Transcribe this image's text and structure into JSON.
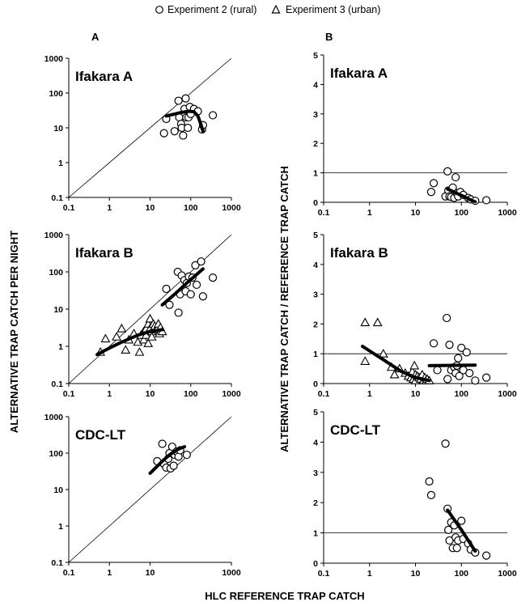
{
  "legend": {
    "position": "top",
    "items": [
      {
        "label": "Experiment 2 (rural)",
        "marker": "circle"
      },
      {
        "label": "Experiment 3 (urban)",
        "marker": "triangle"
      }
    ]
  },
  "column_labels": [
    "A",
    "B"
  ],
  "ylabel_left": "ALTERNATIVE TRAP CATCH PER NIGHT",
  "ylabel_right": "ALTERNATIVE TRAP CATCH / REFERENCE TRAP CATCH",
  "xlabel": "HLC REFERENCE TRAP CATCH",
  "colors": {
    "marks": "#000000",
    "background": "#ffffff"
  },
  "chart_data": [
    {
      "id": "A1",
      "type": "scatter",
      "title": "Ifakara A",
      "xscale": "log",
      "yscale": "log",
      "xlim": [
        0.1,
        1000
      ],
      "ylim": [
        0.1,
        1000
      ],
      "xticks": [
        "0.1",
        "1",
        "10",
        "100",
        "1000"
      ],
      "yticks": [
        "0.1",
        "1",
        "10",
        "100",
        "1000"
      ],
      "reference_line": "y=x",
      "series": [
        {
          "name": "Experiment 2 (rural)",
          "marker": "circle",
          "points": [
            [
              22,
              7
            ],
            [
              25,
              18
            ],
            [
              40,
              8
            ],
            [
              50,
              60
            ],
            [
              52,
              20
            ],
            [
              58,
              13
            ],
            [
              60,
              10
            ],
            [
              65,
              6
            ],
            [
              70,
              35
            ],
            [
              75,
              70
            ],
            [
              78,
              20
            ],
            [
              85,
              10
            ],
            [
              88,
              20
            ],
            [
              95,
              40
            ],
            [
              100,
              25
            ],
            [
              120,
              35
            ],
            [
              150,
              30
            ],
            [
              190,
              9
            ],
            [
              200,
              12
            ],
            [
              350,
              23
            ]
          ]
        }
      ],
      "fit_lines": [
        [
          [
            25,
            22
          ],
          [
            40,
            25
          ],
          [
            60,
            28
          ],
          [
            90,
            30
          ],
          [
            120,
            29
          ],
          [
            150,
            22
          ],
          [
            180,
            12
          ],
          [
            200,
            8
          ]
        ]
      ]
    },
    {
      "id": "B1",
      "type": "scatter",
      "title": "Ifakara A",
      "xscale": "log",
      "yscale": "linear",
      "xlim": [
        0.1,
        1000
      ],
      "ylim": [
        0,
        5
      ],
      "xticks": [
        "0.1",
        "1",
        "10",
        "100",
        "1000"
      ],
      "yticks": [
        "0",
        "1",
        "2",
        "3",
        "4",
        "5"
      ],
      "reference_line": "y=1",
      "series": [
        {
          "name": "Experiment 2 (rural)",
          "marker": "circle",
          "points": [
            [
              22,
              0.35
            ],
            [
              25,
              0.65
            ],
            [
              45,
              0.2
            ],
            [
              50,
              1.05
            ],
            [
              52,
              0.4
            ],
            [
              55,
              0.2
            ],
            [
              60,
              0.18
            ],
            [
              65,
              0.5
            ],
            [
              70,
              0.15
            ],
            [
              75,
              0.85
            ],
            [
              80,
              0.3
            ],
            [
              85,
              0.2
            ],
            [
              95,
              0.35
            ],
            [
              110,
              0.25
            ],
            [
              140,
              0.15
            ],
            [
              160,
              0.1
            ],
            [
              200,
              0.05
            ],
            [
              350,
              0.07
            ]
          ]
        }
      ],
      "fit_lines": [
        [
          [
            50,
            0.45
          ],
          [
            80,
            0.3
          ],
          [
            120,
            0.18
          ],
          [
            160,
            0.08
          ],
          [
            200,
            0.02
          ]
        ]
      ]
    },
    {
      "id": "A2",
      "type": "scatter",
      "title": "Ifakara B",
      "xscale": "log",
      "yscale": "log",
      "xlim": [
        0.1,
        1000
      ],
      "ylim": [
        0.1,
        1000
      ],
      "xticks": [
        "0.1",
        "1",
        "10",
        "100",
        "1000"
      ],
      "yticks": [
        "0.1",
        "1",
        "10",
        "100",
        "1000"
      ],
      "reference_line": "y=x",
      "series": [
        {
          "name": "Experiment 2 (rural)",
          "marker": "circle",
          "points": [
            [
              25,
              35
            ],
            [
              30,
              13
            ],
            [
              48,
              100
            ],
            [
              50,
              8
            ],
            [
              55,
              25
            ],
            [
              60,
              80
            ],
            [
              70,
              60
            ],
            [
              75,
              30
            ],
            [
              80,
              50
            ],
            [
              90,
              75
            ],
            [
              100,
              25
            ],
            [
              110,
              70
            ],
            [
              130,
              150
            ],
            [
              140,
              45
            ],
            [
              180,
              190
            ],
            [
              200,
              22
            ],
            [
              350,
              70
            ]
          ]
        },
        {
          "name": "Experiment 3 (urban)",
          "marker": "triangle",
          "points": [
            [
              0.6,
              0.7
            ],
            [
              0.8,
              1.6
            ],
            [
              1.5,
              1.8
            ],
            [
              2,
              3
            ],
            [
              2.5,
              0.8
            ],
            [
              3,
              1.5
            ],
            [
              4,
              2.2
            ],
            [
              5,
              1.3
            ],
            [
              5.5,
              0.7
            ],
            [
              6,
              2
            ],
            [
              7,
              2.5
            ],
            [
              7,
              1.5
            ],
            [
              8,
              3
            ],
            [
              8,
              2
            ],
            [
              9,
              4
            ],
            [
              9,
              1.2
            ],
            [
              10,
              5.5
            ],
            [
              10,
              3
            ],
            [
              11,
              2.5
            ],
            [
              11,
              1.8
            ],
            [
              12,
              4
            ],
            [
              13,
              3.5
            ],
            [
              14,
              2.8
            ],
            [
              15,
              3
            ],
            [
              16,
              4
            ],
            [
              17,
              2.2
            ],
            [
              18,
              3.2
            ],
            [
              20,
              2.5
            ]
          ]
        }
      ],
      "fit_lines": [
        [
          [
            0.5,
            0.6
          ],
          [
            1,
            0.9
          ],
          [
            2,
            1.3
          ],
          [
            5,
            2
          ],
          [
            10,
            2.5
          ],
          [
            20,
            2.8
          ]
        ],
        [
          [
            20,
            13
          ],
          [
            40,
            25
          ],
          [
            80,
            50
          ],
          [
            200,
            120
          ]
        ]
      ]
    },
    {
      "id": "B2",
      "type": "scatter",
      "title": "Ifakara B",
      "xscale": "log",
      "yscale": "linear",
      "xlim": [
        0.1,
        1000
      ],
      "ylim": [
        0,
        5
      ],
      "xticks": [
        "0.1",
        "1",
        "10",
        "100",
        "1000"
      ],
      "yticks": [
        "0",
        "1",
        "2",
        "3",
        "4",
        "5"
      ],
      "reference_line": "y=1",
      "series": [
        {
          "name": "Experiment 2 (rural)",
          "marker": "circle",
          "points": [
            [
              25,
              1.35
            ],
            [
              30,
              0.45
            ],
            [
              48,
              2.2
            ],
            [
              50,
              0.15
            ],
            [
              55,
              1.3
            ],
            [
              60,
              0.45
            ],
            [
              70,
              0.55
            ],
            [
              75,
              0.35
            ],
            [
              80,
              0.6
            ],
            [
              85,
              0.85
            ],
            [
              90,
              0.25
            ],
            [
              100,
              1.2
            ],
            [
              110,
              0.45
            ],
            [
              130,
              1.05
            ],
            [
              150,
              0.35
            ],
            [
              200,
              0.1
            ],
            [
              350,
              0.2
            ]
          ]
        },
        {
          "name": "Experiment 3 (urban)",
          "marker": "triangle",
          "points": [
            [
              0.8,
              2.05
            ],
            [
              0.8,
              0.75
            ],
            [
              1.5,
              2.05
            ],
            [
              2,
              1
            ],
            [
              3,
              0.55
            ],
            [
              3.5,
              0.3
            ],
            [
              4.5,
              0.5
            ],
            [
              6,
              0.35
            ],
            [
              7,
              0.25
            ],
            [
              8,
              0.2
            ],
            [
              8.5,
              0.4
            ],
            [
              9,
              0.15
            ],
            [
              9.5,
              0.6
            ],
            [
              10,
              0.3
            ],
            [
              10,
              0.1
            ],
            [
              11,
              0.25
            ],
            [
              12,
              0.2
            ],
            [
              13,
              0.15
            ],
            [
              14,
              0.3
            ],
            [
              15,
              0.1
            ],
            [
              16,
              0.2
            ],
            [
              17,
              0.1
            ],
            [
              18,
              0.15
            ],
            [
              20,
              0.1
            ]
          ]
        }
      ],
      "fit_lines": [
        [
          [
            0.7,
            1.25
          ],
          [
            2,
            0.8
          ],
          [
            5,
            0.4
          ],
          [
            10,
            0.2
          ],
          [
            20,
            0.1
          ]
        ],
        [
          [
            20,
            0.6
          ],
          [
            200,
            0.62
          ]
        ]
      ]
    },
    {
      "id": "A3",
      "type": "scatter",
      "title": "CDC-LT",
      "xscale": "log",
      "yscale": "log",
      "xlim": [
        0.1,
        1000
      ],
      "ylim": [
        0.1,
        1000
      ],
      "xticks": [
        "0.1",
        "1",
        "10",
        "1000"
      ],
      "yticks": [
        "0.1",
        "1",
        "10",
        "100",
        "1000"
      ],
      "reference_line": "y=x",
      "series": [
        {
          "name": "Experiment 2 (rural)",
          "marker": "circle",
          "points": [
            [
              15,
              60
            ],
            [
              20,
              180
            ],
            [
              22,
              50
            ],
            [
              25,
              40
            ],
            [
              28,
              70
            ],
            [
              30,
              100
            ],
            [
              32,
              38
            ],
            [
              35,
              150
            ],
            [
              38,
              45
            ],
            [
              40,
              90
            ],
            [
              45,
              110
            ],
            [
              50,
              80
            ],
            [
              55,
              120
            ],
            [
              80,
              90
            ]
          ]
        }
      ],
      "fit_lines": [
        [
          [
            10,
            28
          ],
          [
            20,
            60
          ],
          [
            30,
            90
          ],
          [
            50,
            130
          ],
          [
            70,
            150
          ]
        ]
      ]
    },
    {
      "id": "B3",
      "type": "scatter",
      "title": "CDC-LT",
      "xscale": "log",
      "yscale": "linear",
      "xlim": [
        0.1,
        1000
      ],
      "ylim": [
        0,
        5
      ],
      "xticks": [
        "0.1",
        "1",
        "10",
        "100",
        "1000"
      ],
      "yticks": [
        "0",
        "1",
        "2",
        "3",
        "4",
        "5"
      ],
      "reference_line": "y=1",
      "series": [
        {
          "name": "Experiment 2 (rural)",
          "marker": "circle",
          "points": [
            [
              20,
              2.7
            ],
            [
              22,
              2.25
            ],
            [
              45,
              3.95
            ],
            [
              50,
              1.8
            ],
            [
              52,
              1.1
            ],
            [
              55,
              0.75
            ],
            [
              60,
              1.35
            ],
            [
              65,
              0.5
            ],
            [
              70,
              1.25
            ],
            [
              75,
              0.85
            ],
            [
              80,
              0.5
            ],
            [
              85,
              0.75
            ],
            [
              100,
              1.4
            ],
            [
              110,
              0.8
            ],
            [
              140,
              0.65
            ],
            [
              160,
              0.45
            ],
            [
              200,
              0.35
            ],
            [
              350,
              0.25
            ]
          ]
        }
      ],
      "fit_lines": [
        [
          [
            50,
            1.75
          ],
          [
            100,
            1.1
          ],
          [
            200,
            0.4
          ]
        ]
      ]
    }
  ]
}
